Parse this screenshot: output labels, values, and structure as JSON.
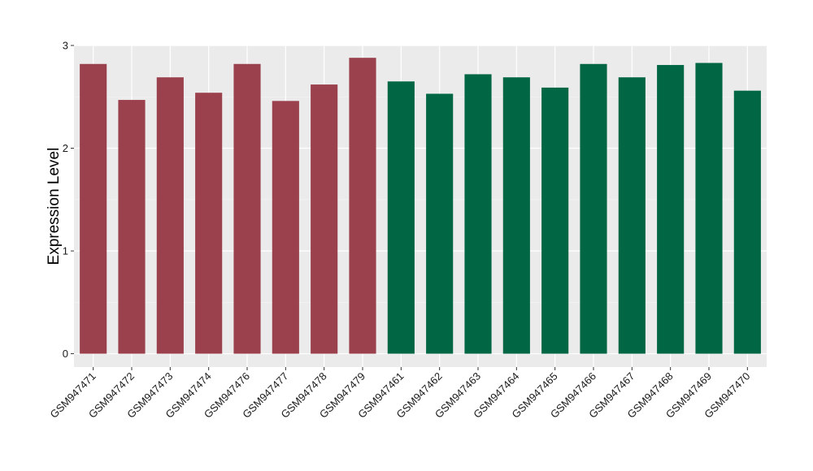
{
  "chart_data": {
    "type": "bar",
    "title": "",
    "xlabel": "",
    "ylabel": "Expression Level",
    "ylim": [
      -0.13,
      3.0
    ],
    "yticks": [
      "0",
      "1",
      "2",
      "3"
    ],
    "grid": true,
    "legend": "none",
    "categories": [
      "GSM947471",
      "GSM947472",
      "GSM947473",
      "GSM947474",
      "GSM947476",
      "GSM947477",
      "GSM947478",
      "GSM947479",
      "GSM947461",
      "GSM947462",
      "GSM947463",
      "GSM947464",
      "GSM947465",
      "GSM947466",
      "GSM947467",
      "GSM947468",
      "GSM947469",
      "GSM947470"
    ],
    "values": [
      2.82,
      2.47,
      2.69,
      2.54,
      2.82,
      2.46,
      2.62,
      2.88,
      2.65,
      2.53,
      2.72,
      2.69,
      2.59,
      2.82,
      2.69,
      2.81,
      2.83,
      2.56
    ],
    "bar_colors": [
      "#9B414E",
      "#9B414E",
      "#9B414E",
      "#9B414E",
      "#9B414E",
      "#9B414E",
      "#9B414E",
      "#9B414E",
      "#006644",
      "#006644",
      "#006644",
      "#006644",
      "#006644",
      "#006644",
      "#006644",
      "#006644",
      "#006644",
      "#006644"
    ]
  },
  "colors": {
    "panel_background": "#EBEBEB",
    "grid_major": "#FFFFFF",
    "grid_minor": "#F5F5F5",
    "group_1": "#9B414E",
    "group_2": "#006644"
  }
}
